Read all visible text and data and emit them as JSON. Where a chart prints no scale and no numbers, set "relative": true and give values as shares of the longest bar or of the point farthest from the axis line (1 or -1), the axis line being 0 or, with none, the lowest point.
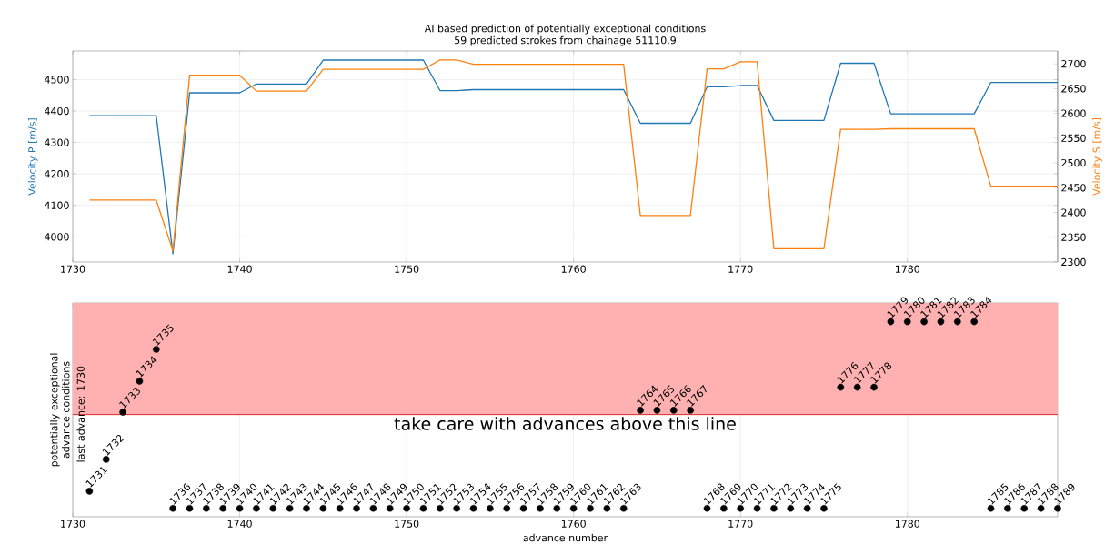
{
  "chart_data": [
    {
      "type": "line",
      "title": "AI based prediction of potentially exceptional conditions",
      "subtitle": "59 predicted strokes from chainage 51110.9",
      "x": [
        1731,
        1732,
        1733,
        1734,
        1735,
        1736,
        1737,
        1738,
        1739,
        1740,
        1741,
        1742,
        1743,
        1744,
        1745,
        1746,
        1747,
        1748,
        1749,
        1750,
        1751,
        1752,
        1753,
        1754,
        1755,
        1756,
        1757,
        1758,
        1759,
        1760,
        1761,
        1762,
        1763,
        1764,
        1765,
        1766,
        1767,
        1768,
        1769,
        1770,
        1771,
        1772,
        1773,
        1774,
        1775,
        1776,
        1777,
        1778,
        1779,
        1780,
        1781,
        1782,
        1783,
        1784,
        1785,
        1786,
        1787,
        1788,
        1789
      ],
      "series": [
        {
          "color": "#1f77b4",
          "values": [
            4385,
            4385,
            4385,
            4385,
            4385,
            3946,
            4458,
            4458,
            4458,
            4458,
            4486,
            4486,
            4486,
            4486,
            4562,
            4562,
            4562,
            4562,
            4562,
            4562,
            4562,
            4465,
            4465,
            4468,
            4468,
            4468,
            4468,
            4468,
            4468,
            4468,
            4468,
            4468,
            4468,
            4361,
            4361,
            4361,
            4361,
            4477,
            4477,
            4481,
            4481,
            4370,
            4370,
            4370,
            4370,
            4552,
            4552,
            4552,
            4391,
            4391,
            4391,
            4391,
            4391,
            4391,
            4491,
            4491,
            4491,
            4491,
            4491
          ]
        },
        {
          "color": "#ff7f0e",
          "axis": "y2",
          "values": [
            2425,
            2425,
            2425,
            2425,
            2425,
            2322,
            2677,
            2677,
            2677,
            2677,
            2645,
            2645,
            2645,
            2645,
            2689,
            2689,
            2689,
            2689,
            2689,
            2689,
            2689,
            2708,
            2708,
            2699,
            2699,
            2699,
            2699,
            2699,
            2699,
            2699,
            2699,
            2699,
            2699,
            2394,
            2394,
            2394,
            2394,
            2690,
            2690,
            2704,
            2704,
            2327,
            2327,
            2327,
            2327,
            2568,
            2568,
            2568,
            2569,
            2569,
            2569,
            2569,
            2569,
            2569,
            2453,
            2453,
            2453,
            2453,
            2453
          ]
        }
      ],
      "ylabel": "Velocity P [m/s]",
      "y2label": "Velocity S [m/s]",
      "xlim": [
        1730,
        1789
      ],
      "xticks": [
        1730,
        1740,
        1750,
        1760,
        1770,
        1780
      ],
      "ylim": [
        3920,
        4591
      ],
      "yticks": [
        4000,
        4100,
        4200,
        4300,
        4400,
        4500
      ],
      "y2lim": [
        2300,
        2726
      ],
      "y2ticks": [
        2300,
        2350,
        2400,
        2450,
        2500,
        2550,
        2600,
        2650,
        2700
      ],
      "grid": true
    },
    {
      "type": "scatter",
      "xlabel": "advance number",
      "ylabel": "potentially exceptional advance conditions",
      "x": [
        1731,
        1732,
        1733,
        1734,
        1735,
        1736,
        1737,
        1738,
        1739,
        1740,
        1741,
        1742,
        1743,
        1744,
        1745,
        1746,
        1747,
        1748,
        1749,
        1750,
        1751,
        1752,
        1753,
        1754,
        1755,
        1756,
        1757,
        1758,
        1759,
        1760,
        1761,
        1762,
        1763,
        1764,
        1765,
        1766,
        1767,
        1768,
        1769,
        1770,
        1771,
        1772,
        1773,
        1774,
        1775,
        1776,
        1777,
        1778,
        1779,
        1780,
        1781,
        1782,
        1783,
        1784,
        1785,
        1786,
        1787,
        1788,
        1789
      ],
      "values": [
        0.131,
        0.294,
        0.536,
        0.695,
        0.858,
        0.043,
        0.043,
        0.043,
        0.043,
        0.043,
        0.043,
        0.043,
        0.043,
        0.043,
        0.043,
        0.043,
        0.043,
        0.043,
        0.043,
        0.043,
        0.043,
        0.043,
        0.043,
        0.043,
        0.043,
        0.043,
        0.043,
        0.043,
        0.043,
        0.043,
        0.043,
        0.043,
        0.043,
        0.546,
        0.546,
        0.546,
        0.546,
        0.043,
        0.043,
        0.043,
        0.043,
        0.043,
        0.043,
        0.043,
        0.043,
        0.664,
        0.664,
        0.664,
        1,
        1,
        1,
        1,
        1,
        1,
        0.043,
        0.043,
        0.043,
        0.043,
        0.043
      ],
      "color": "#000000",
      "marker": "circle",
      "relative": true,
      "tick_labels": "x",
      "xlim": [
        1730,
        1789
      ],
      "xticks": [
        1730,
        1740,
        1750,
        1760,
        1770,
        1780
      ],
      "bands": [
        {
          "axis": "y",
          "from": 0.524,
          "to": 1.096,
          "color": "#ffb0b0"
        }
      ],
      "ref_lines": [
        {
          "axis": "y",
          "value": 0.524,
          "label": "take care with advances above this line",
          "color": "#d62728"
        }
      ],
      "annotations": [
        "last advance: 1730",
        {
          "text": "1731",
          "x": 1731,
          "y": 0.131
        },
        {
          "text": "1732",
          "x": 1732,
          "y": 0.294
        },
        {
          "text": "1733",
          "x": 1733,
          "y": 0.536
        },
        {
          "text": "1734",
          "x": 1734,
          "y": 0.695
        },
        {
          "text": "1735",
          "x": 1735,
          "y": 0.858
        },
        {
          "text": "1736",
          "x": 1736,
          "y": 0.043
        },
        {
          "text": "1737",
          "x": 1737,
          "y": 0.043
        },
        {
          "text": "1738",
          "x": 1738,
          "y": 0.043
        },
        {
          "text": "1739",
          "x": 1739,
          "y": 0.043
        },
        {
          "text": "1740",
          "x": 1740,
          "y": 0.043
        },
        {
          "text": "1741",
          "x": 1741,
          "y": 0.043
        },
        {
          "text": "1742",
          "x": 1742,
          "y": 0.043
        },
        {
          "text": "1743",
          "x": 1743,
          "y": 0.043
        },
        {
          "text": "1744",
          "x": 1744,
          "y": 0.043
        },
        {
          "text": "1745",
          "x": 1745,
          "y": 0.043
        },
        {
          "text": "1746",
          "x": 1746,
          "y": 0.043
        },
        {
          "text": "1747",
          "x": 1747,
          "y": 0.043
        },
        {
          "text": "1748",
          "x": 1748,
          "y": 0.043
        },
        {
          "text": "1749",
          "x": 1749,
          "y": 0.043
        },
        {
          "text": "1750",
          "x": 1750,
          "y": 0.043
        },
        {
          "text": "1751",
          "x": 1751,
          "y": 0.043
        },
        {
          "text": "1752",
          "x": 1752,
          "y": 0.043
        },
        {
          "text": "1753",
          "x": 1753,
          "y": 0.043
        },
        {
          "text": "1754",
          "x": 1754,
          "y": 0.043
        },
        {
          "text": "1755",
          "x": 1755,
          "y": 0.043
        },
        {
          "text": "1756",
          "x": 1756,
          "y": 0.043
        },
        {
          "text": "1757",
          "x": 1757,
          "y": 0.043
        },
        {
          "text": "1758",
          "x": 1758,
          "y": 0.043
        },
        {
          "text": "1759",
          "x": 1759,
          "y": 0.043
        },
        {
          "text": "1760",
          "x": 1760,
          "y": 0.043
        },
        {
          "text": "1761",
          "x": 1761,
          "y": 0.043
        },
        {
          "text": "1762",
          "x": 1762,
          "y": 0.043
        },
        {
          "text": "1763",
          "x": 1763,
          "y": 0.043
        },
        {
          "text": "1764",
          "x": 1764,
          "y": 0.546
        },
        {
          "text": "1765",
          "x": 1765,
          "y": 0.546
        },
        {
          "text": "1766",
          "x": 1766,
          "y": 0.546
        },
        {
          "text": "1767",
          "x": 1767,
          "y": 0.546
        },
        {
          "text": "1768",
          "x": 1768,
          "y": 0.043
        },
        {
          "text": "1769",
          "x": 1769,
          "y": 0.043
        },
        {
          "text": "1770",
          "x": 1770,
          "y": 0.043
        },
        {
          "text": "1771",
          "x": 1771,
          "y": 0.043
        },
        {
          "text": "1772",
          "x": 1772,
          "y": 0.043
        },
        {
          "text": "1773",
          "x": 1773,
          "y": 0.043
        },
        {
          "text": "1774",
          "x": 1774,
          "y": 0.043
        },
        {
          "text": "1775",
          "x": 1775,
          "y": 0.043
        },
        {
          "text": "1776",
          "x": 1776,
          "y": 0.664
        },
        {
          "text": "1777",
          "x": 1777,
          "y": 0.664
        },
        {
          "text": "1778",
          "x": 1778,
          "y": 0.664
        },
        {
          "text": "1779",
          "x": 1779,
          "y": 1
        },
        {
          "text": "1780",
          "x": 1780,
          "y": 1
        },
        {
          "text": "1781",
          "x": 1781,
          "y": 1
        },
        {
          "text": "1782",
          "x": 1782,
          "y": 1
        },
        {
          "text": "1783",
          "x": 1783,
          "y": 1
        },
        {
          "text": "1784",
          "x": 1784,
          "y": 1
        },
        {
          "text": "1785",
          "x": 1785,
          "y": 0.043
        },
        {
          "text": "1786",
          "x": 1786,
          "y": 0.043
        },
        {
          "text": "1787",
          "x": 1787,
          "y": 0.043
        },
        {
          "text": "1788",
          "x": 1788,
          "y": 0.043
        },
        {
          "text": "1789",
          "x": 1789,
          "y": 0.043
        }
      ],
      "grid": "x"
    }
  ]
}
